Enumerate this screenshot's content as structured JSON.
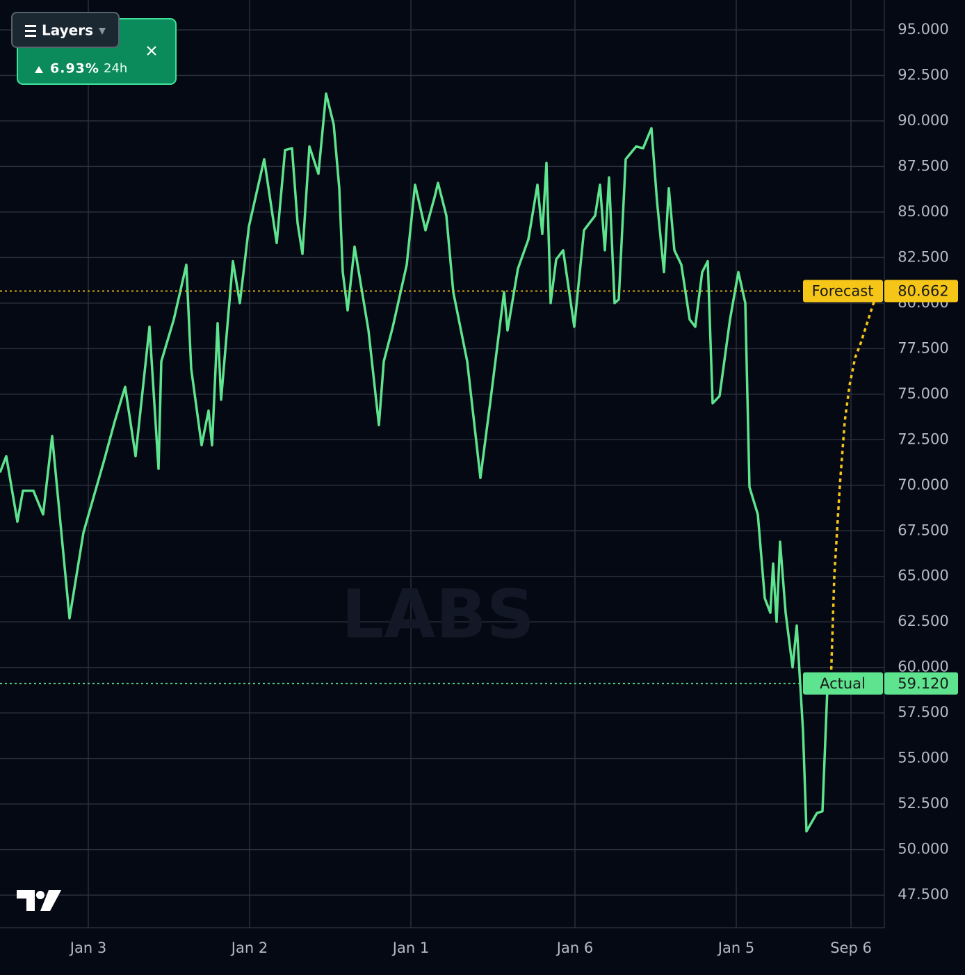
{
  "chart_data": {
    "type": "line",
    "layers_button": "Layers",
    "card": {
      "change": "6.93%",
      "period": "24h"
    },
    "watermark": "LABS",
    "x": [
      0,
      0.9,
      2.5,
      3.3,
      4.8,
      6.2,
      7.5,
      10,
      12,
      15,
      16.5,
      18,
      19.5,
      21.5,
      22.8,
      23.2,
      25,
      26.8,
      27.5,
      29,
      30,
      30.5,
      31.3,
      31.8,
      33.5,
      34.5,
      35.8,
      38,
      39.8,
      41,
      42,
      42.8,
      43.5,
      44.5,
      45.8,
      46.9,
      48,
      48.8,
      49.3,
      50,
      51,
      53,
      54.5,
      55.2,
      56.5,
      58.5,
      59.7,
      61.2,
      62.5,
      63,
      64.2,
      65.2,
      67.2,
      69.1,
      70.5,
      72.5,
      73,
      74.5,
      76,
      77.3,
      78,
      78.6,
      79.2,
      80,
      81,
      82.6,
      84,
      85.6,
      86.3,
      87,
      87.6,
      88.4,
      89,
      90,
      91.5,
      92.5,
      93.7,
      94.5,
      95.5,
      96.2,
      97,
      98,
      99.2,
      100,
      101,
      101.8,
      102.5,
      103.5,
      105,
      106.2,
      107.2,
      107.8,
      109,
      110,
      110.8,
      111.2,
      111.7,
      112.2,
      113,
      114,
      114.6,
      115.5,
      116,
      117.5,
      118.3,
      119,
      119.5,
      120.0,
      120.8,
      121.5,
      122.2,
      123.0,
      123.8,
      126.2
    ],
    "series": [
      {
        "name": "Actual",
        "color": "#5ee38e",
        "style": "solid",
        "values": [
          70.7,
          71.6,
          68.0,
          69.7,
          69.7,
          68.4,
          72.7,
          62.7,
          67.4,
          71.4,
          73.5,
          75.4,
          71.6,
          78.7,
          70.9,
          76.8,
          79.1,
          82.1,
          76.4,
          72.2,
          74.1,
          72.2,
          78.9,
          74.7,
          82.3,
          80.0,
          84.2,
          87.9,
          83.3,
          88.4,
          88.5,
          84.4,
          82.7,
          88.6,
          87.1,
          91.5,
          89.8,
          86.3,
          81.7,
          79.6,
          83.1,
          78.5,
          73.3,
          76.8,
          78.7,
          82.1,
          86.5,
          84.0,
          85.8,
          86.6,
          84.8,
          80.6,
          76.8,
          70.4,
          74.5,
          80.6,
          78.5,
          81.9,
          83.5,
          86.5,
          83.8,
          87.7,
          80.0,
          82.4,
          82.9,
          78.7,
          84.0,
          84.8,
          86.5,
          82.9,
          86.9,
          80.0,
          80.2,
          87.9,
          88.6,
          88.5,
          89.6,
          85.6,
          81.7,
          86.3,
          82.9,
          82.1,
          79.1,
          78.7,
          81.7,
          82.3,
          74.5,
          74.9,
          79.1,
          81.7,
          80.0,
          69.9,
          68.4,
          63.8,
          63.0,
          65.7,
          62.5,
          66.9,
          63.0,
          60.0,
          62.3,
          56.5,
          51.0,
          52.0,
          52.1,
          58.8,
          59.12,
          null,
          null,
          null,
          null,
          null,
          null,
          null
        ]
      },
      {
        "name": "Forecast",
        "color": "#f5c518",
        "style": "dotted",
        "values": [
          null,
          null,
          null,
          null,
          null,
          null,
          null,
          null,
          null,
          null,
          null,
          null,
          null,
          null,
          null,
          null,
          null,
          null,
          null,
          null,
          null,
          null,
          null,
          null,
          null,
          null,
          null,
          null,
          null,
          null,
          null,
          null,
          null,
          null,
          null,
          null,
          null,
          null,
          null,
          null,
          null,
          null,
          null,
          null,
          null,
          null,
          null,
          null,
          null,
          null,
          null,
          null,
          null,
          null,
          null,
          null,
          null,
          null,
          null,
          null,
          null,
          null,
          null,
          null,
          null,
          null,
          null,
          null,
          null,
          null,
          null,
          null,
          null,
          null,
          null,
          null,
          null,
          null,
          null,
          null,
          null,
          null,
          null,
          null,
          null,
          null,
          null,
          null,
          null,
          null,
          null,
          null,
          null,
          null,
          null,
          null,
          null,
          null,
          null,
          null,
          null,
          null,
          null,
          null,
          null,
          null,
          59.12,
          65.0,
          70.0,
          73.5,
          75.5,
          77.0,
          77.8,
          80.662
        ]
      }
    ],
    "markers": [
      {
        "label": "Forecast",
        "value": 80.662,
        "value_label": "80.662",
        "color": "#f5c518"
      },
      {
        "label": "Actual",
        "value": 59.12,
        "value_label": "59.120",
        "color": "#5ee38e"
      }
    ],
    "xlim": [
      0,
      127.2
    ],
    "xticks": [
      {
        "value": 12.7,
        "label": "Jan 3"
      },
      {
        "value": 35.9,
        "label": "Jan 2"
      },
      {
        "value": 59.1,
        "label": "Jan 1"
      },
      {
        "value": 82.7,
        "label": "Jan 6"
      },
      {
        "value": 105.9,
        "label": "Jan 5"
      },
      {
        "value": 122.4,
        "label": "Sep 6"
      }
    ],
    "ylim": [
      45.71,
      96.64
    ],
    "yticks": [
      {
        "value": 47.5,
        "label": "47.500"
      },
      {
        "value": 50,
        "label": "50.000"
      },
      {
        "value": 52.5,
        "label": "52.500"
      },
      {
        "value": 55,
        "label": "55.000"
      },
      {
        "value": 57.5,
        "label": "57.500"
      },
      {
        "value": 60,
        "label": "60.000"
      },
      {
        "value": 62.5,
        "label": "62.500"
      },
      {
        "value": 65,
        "label": "65.000"
      },
      {
        "value": 67.5,
        "label": "67.500"
      },
      {
        "value": 70,
        "label": "70.000"
      },
      {
        "value": 72.5,
        "label": "72.500"
      },
      {
        "value": 75,
        "label": "75.000"
      },
      {
        "value": 77.5,
        "label": "77.500"
      },
      {
        "value": 80,
        "label": "80.000"
      },
      {
        "value": 82.5,
        "label": "82.500"
      },
      {
        "value": 85,
        "label": "85.000"
      },
      {
        "value": 87.5,
        "label": "87.500"
      },
      {
        "value": 90,
        "label": "90.000"
      },
      {
        "value": 92.5,
        "label": "92.500"
      },
      {
        "value": 95,
        "label": "95.000"
      }
    ],
    "grid": true
  }
}
